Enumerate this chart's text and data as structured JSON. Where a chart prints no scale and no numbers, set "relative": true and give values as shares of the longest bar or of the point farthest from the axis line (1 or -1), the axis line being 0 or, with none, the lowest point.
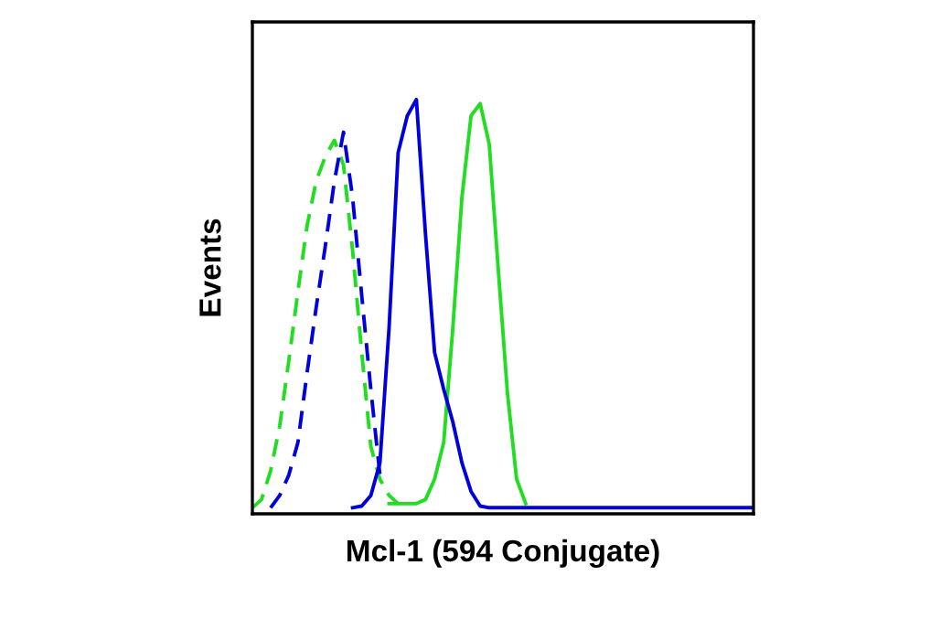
{
  "chart_data": {
    "type": "line",
    "relative": true,
    "xlabel": "Mcl-1 (594 Conjugate)",
    "ylabel": "Events",
    "legend": false,
    "marker": "none",
    "categories": [
      null,
      null,
      null,
      null,
      null,
      null,
      null,
      null,
      null,
      null,
      null,
      null,
      null,
      null,
      null,
      null,
      null,
      null,
      null,
      null,
      null,
      null,
      null,
      null,
      null,
      null,
      null,
      null,
      null,
      null,
      null,
      null,
      null,
      null,
      null,
      null,
      null,
      null,
      null,
      null,
      null,
      null,
      null,
      null,
      null,
      null,
      null,
      null,
      null,
      null,
      null,
      null,
      null,
      null,
      null,
      null
    ],
    "series": [
      {
        "color": "#22dd22",
        "line_style": "dashed",
        "values": [
          0,
          0.02,
          0.09,
          0.2,
          0.36,
          0.53,
          0.69,
          0.8,
          0.86,
          0.9,
          0.84,
          0.63,
          0.38,
          0.15,
          0.07,
          0.03,
          0.01,
          null,
          null,
          null,
          null,
          null,
          null,
          null,
          null,
          null,
          null,
          null,
          null,
          null,
          null,
          null,
          null,
          null,
          null,
          null,
          null,
          null,
          null,
          null,
          null,
          null,
          null,
          null,
          null,
          null,
          null,
          null,
          null,
          null,
          null,
          null,
          null,
          null,
          null,
          null
        ]
      },
      {
        "color": "#0000dd",
        "line_style": "dashed",
        "values": [
          null,
          null,
          0,
          0.03,
          0.08,
          0.16,
          0.33,
          0.49,
          0.64,
          0.8,
          0.92,
          0.76,
          0.52,
          0.29,
          0.08,
          null,
          null,
          null,
          null,
          null,
          null,
          null,
          null,
          null,
          null,
          null,
          null,
          null,
          null,
          null,
          null,
          null,
          null,
          null,
          null,
          null,
          null,
          null,
          null,
          null,
          null,
          null,
          null,
          null,
          null,
          null,
          null,
          null,
          null,
          null,
          null,
          null,
          null,
          null,
          null,
          null
        ]
      },
      {
        "color": "#22dd22",
        "line_style": "solid",
        "values": [
          null,
          null,
          null,
          null,
          null,
          null,
          null,
          null,
          null,
          null,
          null,
          null,
          null,
          null,
          null,
          0.01,
          0.01,
          0.01,
          0.01,
          0.02,
          0.07,
          0.16,
          0.44,
          0.76,
          0.96,
          0.99,
          0.89,
          0.58,
          0.28,
          0.07,
          0.01,
          null,
          null,
          null,
          null,
          null,
          null,
          null,
          null,
          null,
          null,
          null,
          null,
          null,
          null,
          null,
          null,
          null,
          null,
          null,
          null,
          null,
          null,
          null,
          null,
          null
        ]
      },
      {
        "color": "#0000dd",
        "line_style": "solid",
        "values": [
          null,
          null,
          null,
          null,
          null,
          null,
          null,
          null,
          null,
          null,
          null,
          0,
          0.004,
          0.03,
          0.11,
          0.44,
          0.87,
          0.96,
          1.0,
          0.67,
          0.38,
          0.29,
          0.21,
          0.11,
          0.04,
          0.004,
          0,
          0,
          0,
          0,
          0,
          0,
          0,
          0,
          0,
          0,
          0,
          0,
          0,
          0,
          0,
          0,
          0,
          0,
          0,
          0,
          0,
          0,
          0,
          0,
          0,
          0,
          0,
          0,
          0,
          0
        ]
      }
    ]
  }
}
